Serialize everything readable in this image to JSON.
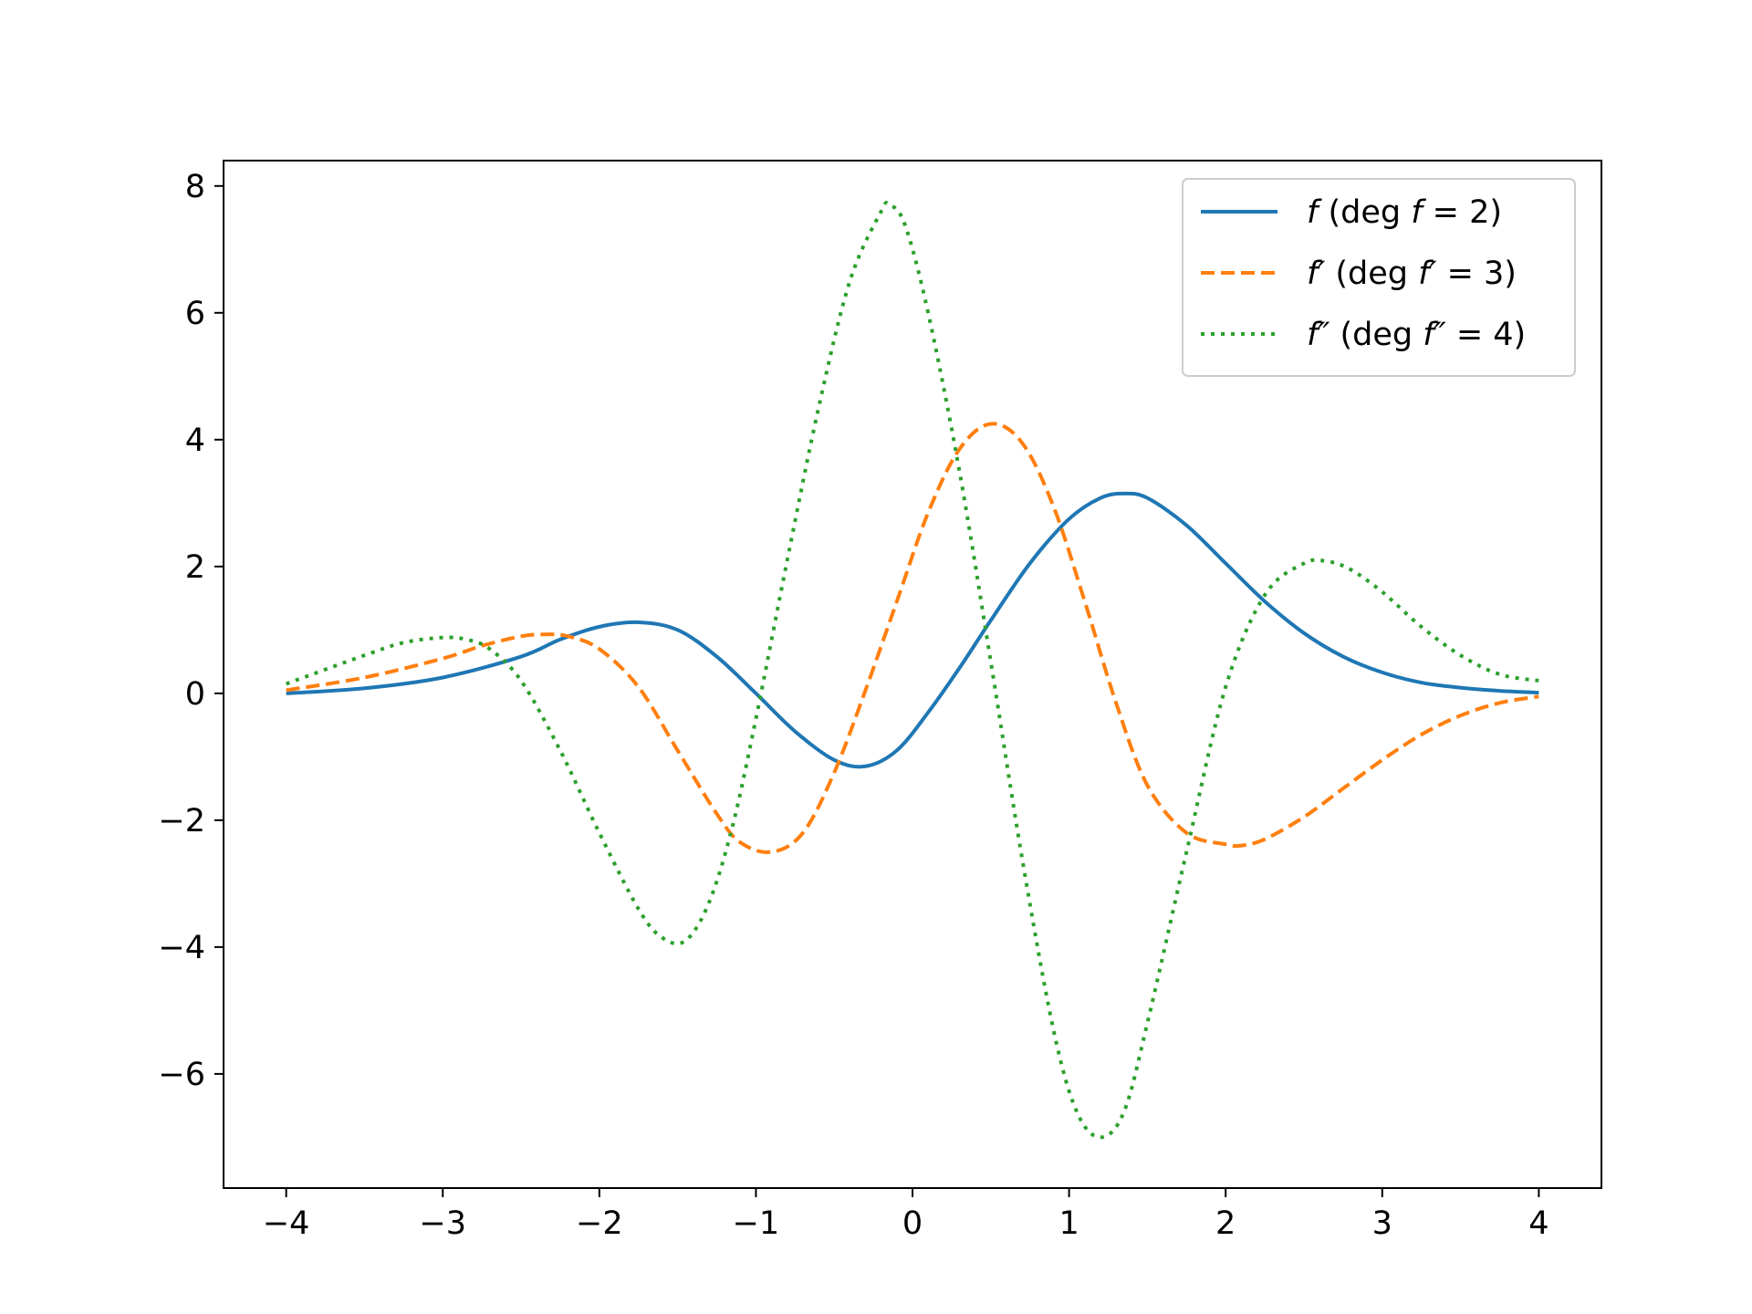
{
  "chart_data": {
    "type": "line",
    "title": "",
    "xlabel": "",
    "ylabel": "",
    "xlim": [
      -4.4,
      4.4
    ],
    "ylim": [
      -7.8,
      8.4
    ],
    "x_ticks": [
      -4,
      -3,
      -2,
      -1,
      0,
      1,
      2,
      3,
      4
    ],
    "x_tick_labels": [
      "−4",
      "−3",
      "−2",
      "−1",
      "0",
      "1",
      "2",
      "3",
      "4"
    ],
    "y_ticks": [
      -6,
      -4,
      -2,
      0,
      2,
      4,
      6,
      8
    ],
    "y_tick_labels": [
      "−6",
      "−4",
      "−2",
      "0",
      "2",
      "4",
      "6",
      "8"
    ],
    "grid": false,
    "legend_position": "top-right",
    "series": [
      {
        "name": "f (deg f = 2)",
        "name_parts": [
          "f",
          " (deg ",
          "f",
          " = 2)"
        ],
        "color": "#1f77b4",
        "line_style": "solid",
        "x": [
          -4.0,
          -3.5,
          -3.0,
          -2.5,
          -2.25,
          -2.0,
          -1.75,
          -1.5,
          -1.25,
          -1.0,
          -0.75,
          -0.5,
          -0.3,
          -0.1,
          0.1,
          0.3,
          0.5,
          0.75,
          1.0,
          1.2,
          1.35,
          1.5,
          1.75,
          2.0,
          2.25,
          2.5,
          2.75,
          3.0,
          3.25,
          3.5,
          3.75,
          4.0
        ],
        "y": [
          0.0,
          0.08,
          0.25,
          0.58,
          0.85,
          1.05,
          1.12,
          1.0,
          0.58,
          0.0,
          -0.6,
          -1.05,
          -1.15,
          -0.9,
          -0.3,
          0.4,
          1.15,
          2.05,
          2.75,
          3.08,
          3.15,
          3.08,
          2.65,
          2.05,
          1.45,
          0.95,
          0.58,
          0.33,
          0.17,
          0.09,
          0.04,
          0.01
        ]
      },
      {
        "name": "f′ (deg f′ = 3)",
        "name_parts": [
          "f′",
          " (deg ",
          "f′",
          " = 3)"
        ],
        "color": "#ff7f0e",
        "line_style": "dashed",
        "x": [
          -4.0,
          -3.5,
          -3.0,
          -2.75,
          -2.5,
          -2.35,
          -2.2,
          -2.0,
          -1.75,
          -1.5,
          -1.25,
          -1.1,
          -0.9,
          -0.7,
          -0.5,
          -0.3,
          -0.1,
          0.1,
          0.3,
          0.5,
          0.7,
          0.9,
          1.1,
          1.3,
          1.5,
          1.75,
          2.0,
          2.1,
          2.25,
          2.5,
          2.75,
          3.0,
          3.25,
          3.5,
          3.75,
          4.0
        ],
        "y": [
          0.05,
          0.25,
          0.55,
          0.75,
          0.9,
          0.93,
          0.9,
          0.7,
          0.1,
          -0.9,
          -1.9,
          -2.35,
          -2.5,
          -2.2,
          -1.25,
          0.05,
          1.45,
          2.85,
          3.85,
          4.25,
          3.95,
          2.95,
          1.45,
          -0.15,
          -1.45,
          -2.2,
          -2.38,
          -2.4,
          -2.3,
          -1.95,
          -1.5,
          -1.05,
          -0.65,
          -0.35,
          -0.15,
          -0.05
        ]
      },
      {
        "name": "f″ (deg f″ = 4)",
        "name_parts": [
          "f″",
          " (deg ",
          "f″",
          " = 4)"
        ],
        "color": "#2ca02c",
        "line_style": "dotted",
        "x": [
          -4.0,
          -3.5,
          -3.25,
          -3.0,
          -2.85,
          -2.7,
          -2.5,
          -2.25,
          -2.0,
          -1.75,
          -1.6,
          -1.45,
          -1.3,
          -1.15,
          -1.0,
          -0.8,
          -0.6,
          -0.4,
          -0.2,
          -0.15,
          -0.05,
          0.1,
          0.3,
          0.5,
          0.7,
          0.9,
          1.05,
          1.2,
          1.35,
          1.5,
          1.75,
          2.0,
          2.25,
          2.5,
          2.65,
          2.8,
          3.0,
          3.25,
          3.5,
          3.75,
          4.0
        ],
        "y": [
          0.15,
          0.6,
          0.8,
          0.88,
          0.85,
          0.7,
          0.2,
          -0.9,
          -2.2,
          -3.4,
          -3.85,
          -3.9,
          -3.3,
          -2.1,
          -0.4,
          2.1,
          4.5,
          6.5,
          7.6,
          7.7,
          7.4,
          6.0,
          3.5,
          0.5,
          -2.6,
          -5.3,
          -6.6,
          -7.0,
          -6.6,
          -5.2,
          -2.5,
          0.1,
          1.55,
          2.05,
          2.08,
          1.95,
          1.6,
          1.05,
          0.6,
          0.3,
          0.2
        ]
      }
    ]
  }
}
